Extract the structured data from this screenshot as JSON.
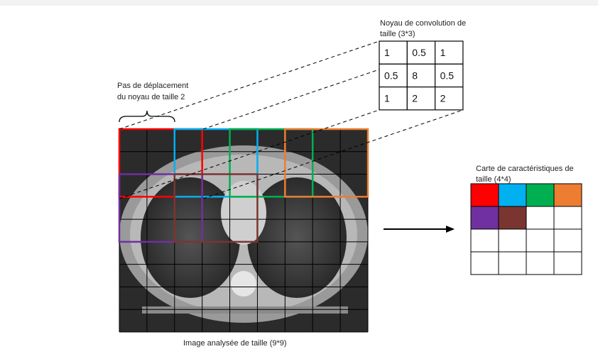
{
  "kernel_label": [
    "Noyau de convolution de",
    "taille (3*3)"
  ],
  "kernel": [
    [
      1,
      0.5,
      1
    ],
    [
      0.5,
      8,
      0.5
    ],
    [
      1,
      2,
      2
    ]
  ],
  "stride_label": [
    "Pas de déplacement",
    "du noyau de taille 2"
  ],
  "feature_map_label": [
    "Carte de caractéristiques de",
    "taille (4*4)"
  ],
  "image_label": "Image analysée de taille (9*9)",
  "window_colors": [
    "#ff0000",
    "#00b0f0",
    "#00b050",
    "#ed7d31",
    "#7030a0",
    "#7b3530"
  ]
}
